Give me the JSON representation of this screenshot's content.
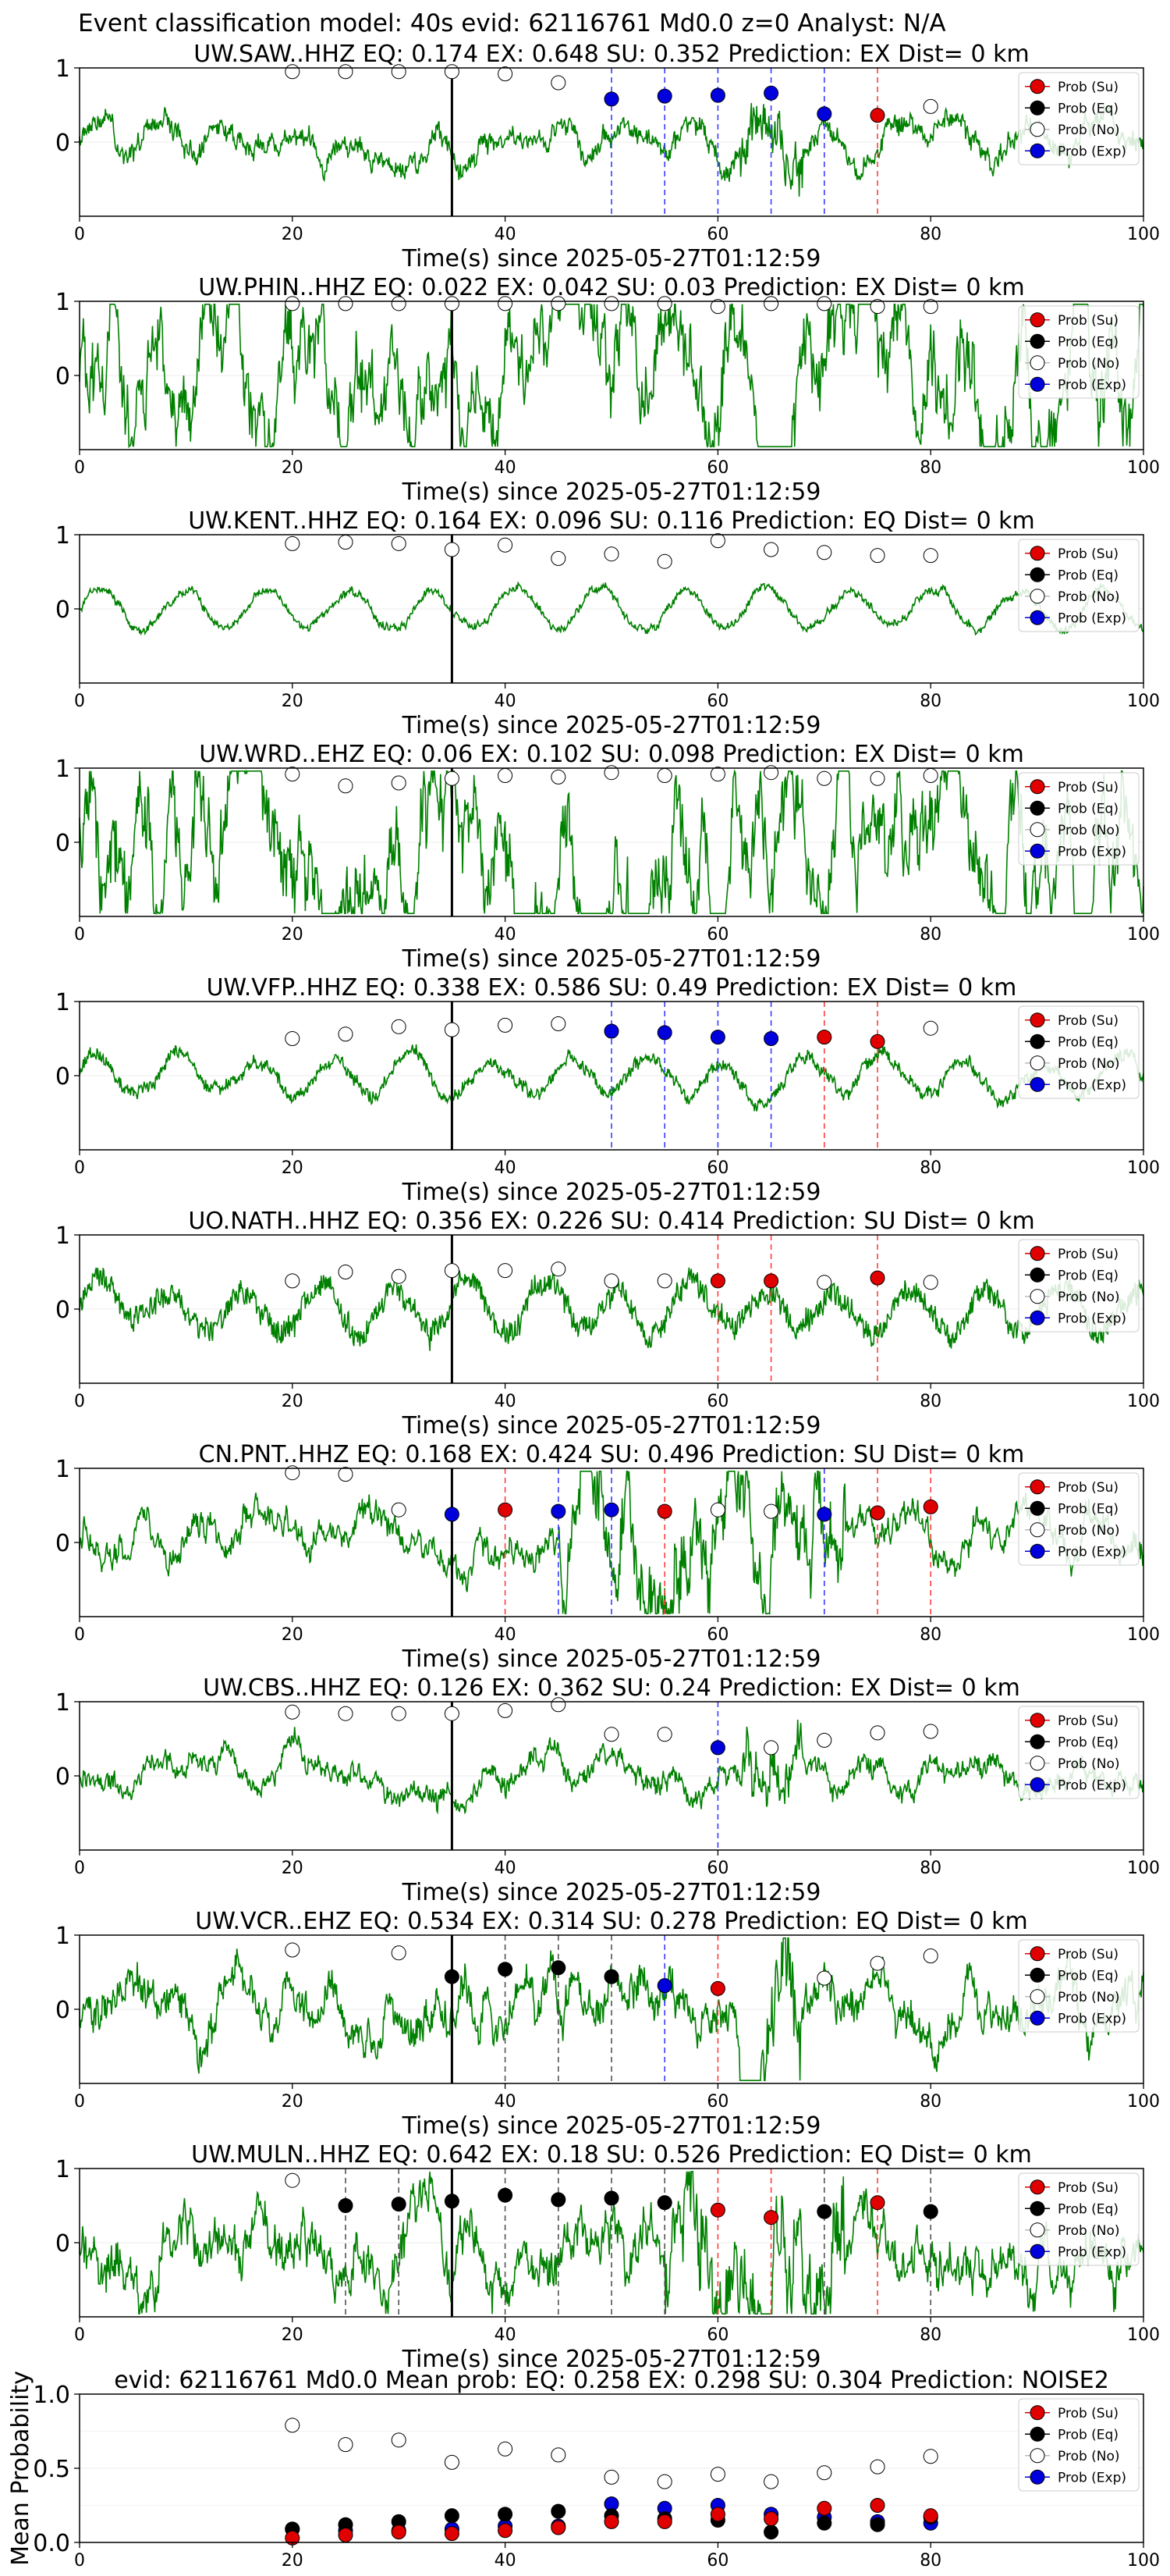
{
  "figure": {
    "suptitle": "Event classification model: 40s evid: 62116761 Md0.0 z=0 Analyst: N/A"
  },
  "legend": {
    "entries": [
      {
        "label": "Prob (Su)",
        "color": "#e00000"
      },
      {
        "label": "Prob (Eq)",
        "color": "#000000"
      },
      {
        "label": "Prob (No)",
        "color": "#ffffff"
      },
      {
        "label": "Prob (Exp)",
        "color": "#0000dd"
      }
    ]
  },
  "chart_data": [
    {
      "type": "line",
      "title": "UW.SAW..HHZ   EQ: 0.174  EX: 0.648  SU: 0.352   Prediction: EX    Dist= 0 km",
      "xlabel": "Time(s) since 2025-05-27T01:12:59",
      "xlim": [
        0,
        100
      ],
      "ylim": [
        -1,
        1
      ],
      "xticks": [
        0,
        20,
        40,
        60,
        80,
        100
      ],
      "yticks": [
        0,
        1
      ],
      "waveform_color": "#008000",
      "pick_time": 35,
      "points": [
        {
          "x": 20,
          "y": 0.95,
          "class": "No"
        },
        {
          "x": 25,
          "y": 0.95,
          "class": "No"
        },
        {
          "x": 30,
          "y": 0.95,
          "class": "No"
        },
        {
          "x": 35,
          "y": 0.95,
          "class": "No"
        },
        {
          "x": 40,
          "y": 0.92,
          "class": "No"
        },
        {
          "x": 45,
          "y": 0.8,
          "class": "No"
        },
        {
          "x": 50,
          "y": 0.58,
          "class": "Exp"
        },
        {
          "x": 55,
          "y": 0.62,
          "class": "Exp"
        },
        {
          "x": 60,
          "y": 0.63,
          "class": "Exp"
        },
        {
          "x": 65,
          "y": 0.66,
          "class": "Exp"
        },
        {
          "x": 70,
          "y": 0.38,
          "class": "Exp"
        },
        {
          "x": 75,
          "y": 0.36,
          "class": "Su"
        },
        {
          "x": 80,
          "y": 0.48,
          "class": "No"
        }
      ]
    },
    {
      "type": "line",
      "title": "UW.PHIN..HHZ   EQ: 0.022  EX: 0.042  SU: 0.03   Prediction: EX    Dist= 0 km",
      "xlabel": "Time(s) since 2025-05-27T01:12:59",
      "xlim": [
        0,
        100
      ],
      "ylim": [
        -1,
        1
      ],
      "xticks": [
        0,
        20,
        40,
        60,
        80,
        100
      ],
      "yticks": [
        0,
        1
      ],
      "waveform_color": "#008000",
      "pick_time": 35,
      "points": [
        {
          "x": 20,
          "y": 0.97,
          "class": "No"
        },
        {
          "x": 25,
          "y": 0.97,
          "class": "No"
        },
        {
          "x": 30,
          "y": 0.97,
          "class": "No"
        },
        {
          "x": 35,
          "y": 0.97,
          "class": "No"
        },
        {
          "x": 40,
          "y": 0.97,
          "class": "No"
        },
        {
          "x": 45,
          "y": 0.97,
          "class": "No"
        },
        {
          "x": 50,
          "y": 0.97,
          "class": "No"
        },
        {
          "x": 55,
          "y": 0.97,
          "class": "No"
        },
        {
          "x": 60,
          "y": 0.93,
          "class": "No"
        },
        {
          "x": 65,
          "y": 0.97,
          "class": "No"
        },
        {
          "x": 70,
          "y": 0.97,
          "class": "No"
        },
        {
          "x": 75,
          "y": 0.93,
          "class": "No"
        },
        {
          "x": 80,
          "y": 0.93,
          "class": "No"
        }
      ]
    },
    {
      "type": "line",
      "title": "UW.KENT..HHZ   EQ: 0.164  EX: 0.096  SU: 0.116   Prediction: EQ    Dist= 0 km",
      "xlabel": "Time(s) since 2025-05-27T01:12:59",
      "xlim": [
        0,
        100
      ],
      "ylim": [
        -1,
        1
      ],
      "xticks": [
        0,
        20,
        40,
        60,
        80,
        100
      ],
      "yticks": [
        0,
        1
      ],
      "waveform_color": "#008000",
      "pick_time": 35,
      "points": [
        {
          "x": 20,
          "y": 0.88,
          "class": "No"
        },
        {
          "x": 25,
          "y": 0.9,
          "class": "No"
        },
        {
          "x": 30,
          "y": 0.88,
          "class": "No"
        },
        {
          "x": 35,
          "y": 0.8,
          "class": "No"
        },
        {
          "x": 40,
          "y": 0.86,
          "class": "No"
        },
        {
          "x": 45,
          "y": 0.68,
          "class": "No"
        },
        {
          "x": 50,
          "y": 0.74,
          "class": "No"
        },
        {
          "x": 55,
          "y": 0.64,
          "class": "No"
        },
        {
          "x": 60,
          "y": 0.92,
          "class": "No"
        },
        {
          "x": 65,
          "y": 0.8,
          "class": "No"
        },
        {
          "x": 70,
          "y": 0.76,
          "class": "No"
        },
        {
          "x": 75,
          "y": 0.72,
          "class": "No"
        },
        {
          "x": 80,
          "y": 0.72,
          "class": "No"
        }
      ]
    },
    {
      "type": "line",
      "title": "UW.WRD..EHZ   EQ: 0.06  EX: 0.102  SU: 0.098   Prediction: EX    Dist= 0 km",
      "xlabel": "Time(s) since 2025-05-27T01:12:59",
      "xlim": [
        0,
        100
      ],
      "ylim": [
        -1,
        1
      ],
      "xticks": [
        0,
        20,
        40,
        60,
        80,
        100
      ],
      "yticks": [
        0,
        1
      ],
      "waveform_color": "#008000",
      "pick_time": 35,
      "points": [
        {
          "x": 20,
          "y": 0.92,
          "class": "No"
        },
        {
          "x": 25,
          "y": 0.76,
          "class": "No"
        },
        {
          "x": 30,
          "y": 0.8,
          "class": "No"
        },
        {
          "x": 35,
          "y": 0.86,
          "class": "No"
        },
        {
          "x": 40,
          "y": 0.9,
          "class": "No"
        },
        {
          "x": 45,
          "y": 0.88,
          "class": "No"
        },
        {
          "x": 50,
          "y": 0.94,
          "class": "No"
        },
        {
          "x": 55,
          "y": 0.9,
          "class": "No"
        },
        {
          "x": 60,
          "y": 0.92,
          "class": "No"
        },
        {
          "x": 65,
          "y": 0.94,
          "class": "No"
        },
        {
          "x": 70,
          "y": 0.86,
          "class": "No"
        },
        {
          "x": 75,
          "y": 0.86,
          "class": "No"
        },
        {
          "x": 80,
          "y": 0.9,
          "class": "No"
        }
      ]
    },
    {
      "type": "line",
      "title": "UW.VFP..HHZ   EQ: 0.338  EX: 0.586  SU: 0.49   Prediction: EX    Dist= 0 km",
      "xlabel": "Time(s) since 2025-05-27T01:12:59",
      "xlim": [
        0,
        100
      ],
      "ylim": [
        -1,
        1
      ],
      "xticks": [
        0,
        20,
        40,
        60,
        80,
        100
      ],
      "yticks": [
        0,
        1
      ],
      "waveform_color": "#008000",
      "pick_time": 35,
      "points": [
        {
          "x": 20,
          "y": 0.5,
          "class": "No"
        },
        {
          "x": 25,
          "y": 0.56,
          "class": "No"
        },
        {
          "x": 30,
          "y": 0.66,
          "class": "No"
        },
        {
          "x": 35,
          "y": 0.62,
          "class": "No"
        },
        {
          "x": 40,
          "y": 0.68,
          "class": "No"
        },
        {
          "x": 45,
          "y": 0.7,
          "class": "No"
        },
        {
          "x": 50,
          "y": 0.6,
          "class": "Exp"
        },
        {
          "x": 55,
          "y": 0.58,
          "class": "Exp"
        },
        {
          "x": 60,
          "y": 0.52,
          "class": "Exp"
        },
        {
          "x": 65,
          "y": 0.5,
          "class": "Exp"
        },
        {
          "x": 70,
          "y": 0.52,
          "class": "Su"
        },
        {
          "x": 75,
          "y": 0.46,
          "class": "Su"
        },
        {
          "x": 80,
          "y": 0.64,
          "class": "No"
        }
      ]
    },
    {
      "type": "line",
      "title": "UO.NATH..HHZ   EQ: 0.356  EX: 0.226  SU: 0.414   Prediction: SU    Dist= 0 km",
      "xlabel": "Time(s) since 2025-05-27T01:12:59",
      "xlim": [
        0,
        100
      ],
      "ylim": [
        -1,
        1
      ],
      "xticks": [
        0,
        20,
        40,
        60,
        80,
        100
      ],
      "yticks": [
        0,
        1
      ],
      "waveform_color": "#008000",
      "pick_time": 35,
      "points": [
        {
          "x": 20,
          "y": 0.38,
          "class": "No"
        },
        {
          "x": 25,
          "y": 0.5,
          "class": "No"
        },
        {
          "x": 30,
          "y": 0.44,
          "class": "No"
        },
        {
          "x": 35,
          "y": 0.52,
          "class": "No"
        },
        {
          "x": 40,
          "y": 0.52,
          "class": "No"
        },
        {
          "x": 45,
          "y": 0.54,
          "class": "No"
        },
        {
          "x": 50,
          "y": 0.38,
          "class": "No"
        },
        {
          "x": 55,
          "y": 0.38,
          "class": "No"
        },
        {
          "x": 60,
          "y": 0.38,
          "class": "Su"
        },
        {
          "x": 65,
          "y": 0.38,
          "class": "Su"
        },
        {
          "x": 70,
          "y": 0.36,
          "class": "No"
        },
        {
          "x": 75,
          "y": 0.42,
          "class": "Su"
        },
        {
          "x": 80,
          "y": 0.36,
          "class": "No"
        }
      ]
    },
    {
      "type": "line",
      "title": "CN.PNT..HHZ   EQ: 0.168  EX: 0.424  SU: 0.496   Prediction: SU    Dist= 0 km",
      "xlabel": "Time(s) since 2025-05-27T01:12:59",
      "xlim": [
        0,
        100
      ],
      "ylim": [
        -1,
        1
      ],
      "xticks": [
        0,
        20,
        40,
        60,
        80,
        100
      ],
      "yticks": [
        0,
        1
      ],
      "waveform_color": "#008000",
      "pick_time": 35,
      "points": [
        {
          "x": 20,
          "y": 0.94,
          "class": "No"
        },
        {
          "x": 25,
          "y": 0.92,
          "class": "No"
        },
        {
          "x": 30,
          "y": 0.44,
          "class": "No"
        },
        {
          "x": 35,
          "y": 0.38,
          "class": "Exp"
        },
        {
          "x": 40,
          "y": 0.44,
          "class": "Su"
        },
        {
          "x": 45,
          "y": 0.42,
          "class": "Exp"
        },
        {
          "x": 50,
          "y": 0.44,
          "class": "Exp"
        },
        {
          "x": 55,
          "y": 0.42,
          "class": "Su"
        },
        {
          "x": 60,
          "y": 0.44,
          "class": "No"
        },
        {
          "x": 65,
          "y": 0.42,
          "class": "No"
        },
        {
          "x": 70,
          "y": 0.38,
          "class": "Exp"
        },
        {
          "x": 75,
          "y": 0.4,
          "class": "Su"
        },
        {
          "x": 80,
          "y": 0.48,
          "class": "Su"
        }
      ]
    },
    {
      "type": "line",
      "title": "UW.CBS..HHZ   EQ: 0.126  EX: 0.362  SU: 0.24   Prediction: EX    Dist= 0 km",
      "xlabel": "Time(s) since 2025-05-27T01:12:59",
      "xlim": [
        0,
        100
      ],
      "ylim": [
        -1,
        1
      ],
      "xticks": [
        0,
        20,
        40,
        60,
        80,
        100
      ],
      "yticks": [
        0,
        1
      ],
      "waveform_color": "#008000",
      "pick_time": 35,
      "points": [
        {
          "x": 20,
          "y": 0.86,
          "class": "No"
        },
        {
          "x": 25,
          "y": 0.84,
          "class": "No"
        },
        {
          "x": 30,
          "y": 0.84,
          "class": "No"
        },
        {
          "x": 35,
          "y": 0.84,
          "class": "No"
        },
        {
          "x": 40,
          "y": 0.88,
          "class": "No"
        },
        {
          "x": 45,
          "y": 0.96,
          "class": "No"
        },
        {
          "x": 50,
          "y": 0.56,
          "class": "No"
        },
        {
          "x": 55,
          "y": 0.56,
          "class": "No"
        },
        {
          "x": 60,
          "y": 0.38,
          "class": "Exp"
        },
        {
          "x": 65,
          "y": 0.38,
          "class": "No"
        },
        {
          "x": 70,
          "y": 0.48,
          "class": "No"
        },
        {
          "x": 75,
          "y": 0.58,
          "class": "No"
        },
        {
          "x": 80,
          "y": 0.6,
          "class": "No"
        }
      ]
    },
    {
      "type": "line",
      "title": "UW.VCR..EHZ   EQ: 0.534  EX: 0.314  SU: 0.278   Prediction: EQ    Dist= 0 km",
      "xlabel": "Time(s) since 2025-05-27T01:12:59",
      "xlim": [
        0,
        100
      ],
      "ylim": [
        -1,
        1
      ],
      "xticks": [
        0,
        20,
        40,
        60,
        80,
        100
      ],
      "yticks": [
        0,
        1
      ],
      "waveform_color": "#008000",
      "pick_time": 35,
      "points": [
        {
          "x": 20,
          "y": 0.8,
          "class": "No"
        },
        {
          "x": 30,
          "y": 0.76,
          "class": "No"
        },
        {
          "x": 35,
          "y": 0.44,
          "class": "Eq"
        },
        {
          "x": 40,
          "y": 0.54,
          "class": "Eq"
        },
        {
          "x": 45,
          "y": 0.56,
          "class": "Eq"
        },
        {
          "x": 50,
          "y": 0.44,
          "class": "Eq"
        },
        {
          "x": 55,
          "y": 0.32,
          "class": "Exp"
        },
        {
          "x": 60,
          "y": 0.28,
          "class": "Su"
        },
        {
          "x": 70,
          "y": 0.42,
          "class": "No"
        },
        {
          "x": 75,
          "y": 0.62,
          "class": "No"
        },
        {
          "x": 80,
          "y": 0.72,
          "class": "No"
        }
      ]
    },
    {
      "type": "line",
      "title": "UW.MULN..HHZ   EQ: 0.642  EX: 0.18  SU: 0.526   Prediction: EQ    Dist= 0 km",
      "xlabel": "Time(s) since 2025-05-27T01:12:59",
      "xlim": [
        0,
        100
      ],
      "ylim": [
        -1,
        1
      ],
      "xticks": [
        0,
        20,
        40,
        60,
        80,
        100
      ],
      "yticks": [
        0,
        1
      ],
      "waveform_color": "#008000",
      "pick_time": 35,
      "points": [
        {
          "x": 20,
          "y": 0.84,
          "class": "No"
        },
        {
          "x": 25,
          "y": 0.5,
          "class": "Eq"
        },
        {
          "x": 30,
          "y": 0.52,
          "class": "Eq"
        },
        {
          "x": 35,
          "y": 0.56,
          "class": "Eq"
        },
        {
          "x": 40,
          "y": 0.64,
          "class": "Eq"
        },
        {
          "x": 45,
          "y": 0.58,
          "class": "Eq"
        },
        {
          "x": 50,
          "y": 0.6,
          "class": "Eq"
        },
        {
          "x": 55,
          "y": 0.54,
          "class": "Eq"
        },
        {
          "x": 60,
          "y": 0.44,
          "class": "Su"
        },
        {
          "x": 65,
          "y": 0.34,
          "class": "Su"
        },
        {
          "x": 70,
          "y": 0.42,
          "class": "Eq"
        },
        {
          "x": 75,
          "y": 0.54,
          "class": "Su"
        },
        {
          "x": 80,
          "y": 0.42,
          "class": "Eq"
        }
      ]
    },
    {
      "type": "scatter",
      "title": "evid: 62116761   Md0.0   Mean prob:   EQ: 0.258  EX: 0.298  SU: 0.304   Prediction: NOISE2",
      "ylabel": "Mean Probability",
      "xlim": [
        0,
        100
      ],
      "ylim": [
        0,
        1
      ],
      "xticks": [
        0,
        20,
        40,
        60,
        80,
        100
      ],
      "yticks": [
        0.0,
        0.5,
        1.0
      ],
      "ytick_labels": [
        "0.0",
        "0.5",
        "1.0"
      ],
      "x": [
        20,
        25,
        30,
        35,
        40,
        45,
        50,
        55,
        60,
        65,
        70,
        75,
        80
      ],
      "series": [
        {
          "name": "Prob (No)",
          "values": [
            0.79,
            0.66,
            0.69,
            0.54,
            0.63,
            0.59,
            0.44,
            0.41,
            0.46,
            0.41,
            0.47,
            0.51,
            0.58
          ]
        },
        {
          "name": "Prob (Exp)",
          "values": [
            0.09,
            0.08,
            0.08,
            0.09,
            0.11,
            0.11,
            0.26,
            0.23,
            0.25,
            0.19,
            0.17,
            0.14,
            0.13
          ]
        },
        {
          "name": "Prob (Eq)",
          "values": [
            0.09,
            0.12,
            0.14,
            0.18,
            0.19,
            0.21,
            0.18,
            0.16,
            0.15,
            0.07,
            0.13,
            0.12,
            0.17
          ]
        },
        {
          "name": "Prob (Su)",
          "values": [
            0.03,
            0.05,
            0.07,
            0.06,
            0.08,
            0.1,
            0.14,
            0.14,
            0.19,
            0.16,
            0.23,
            0.25,
            0.18
          ]
        }
      ]
    }
  ]
}
